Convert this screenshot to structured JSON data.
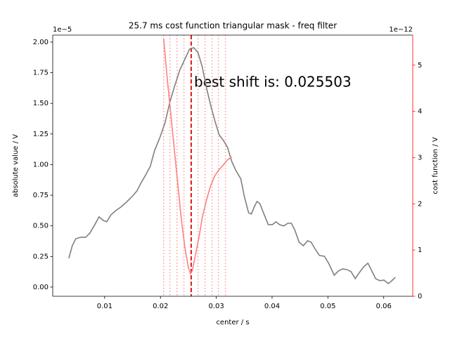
{
  "chart_data": {
    "type": "line",
    "title": "25.7 ms cost function triangular mask - freq filter",
    "xlabel": "center / s",
    "ylabel": "absolute value / V",
    "y2label": "cost function / V",
    "y_offset_label": "1e−5",
    "y2_offset_label": "1e−12",
    "annotation": "best shift is: 0.025503",
    "annotation_color": "#ff0000",
    "xlim": [
      0.0007,
      0.0652
    ],
    "xticks": [
      0.01,
      0.02,
      0.03,
      0.04,
      0.05,
      0.06
    ],
    "ylim": [
      -0.075,
      2.057
    ],
    "yticks": [
      {
        "value": 0,
        "label": "0.00"
      },
      {
        "value": 0.25,
        "label": "0.25"
      },
      {
        "value": 0.5,
        "label": "0.50"
      },
      {
        "value": 0.75,
        "label": "0.75"
      },
      {
        "value": 1,
        "label": "1.00"
      },
      {
        "value": 1.25,
        "label": "1.25"
      },
      {
        "value": 1.5,
        "label": "1.50"
      },
      {
        "value": 1.75,
        "label": "1.75"
      },
      {
        "value": 2,
        "label": "2.00"
      }
    ],
    "y2lim": [
      0,
      5.65
    ],
    "y2ticks": [
      0,
      1,
      2,
      3,
      4,
      5
    ],
    "y2_color": "#ff0000",
    "best_shift": 0.025503,
    "best_shift_color": "#dd0000",
    "window_edges": [
      0.02057,
      0.0217,
      0.02296,
      0.02421,
      0.02673,
      0.02799,
      0.02925,
      0.03038,
      0.03164
    ],
    "window_color": "#ff9999",
    "series": [
      {
        "color": "#808080",
        "x": [
          0.00358,
          0.00421,
          0.00484,
          0.00572,
          0.0066,
          0.00736,
          0.00824,
          0.00899,
          0.00975,
          0.01038,
          0.01113,
          0.01201,
          0.01289,
          0.0139,
          0.01491,
          0.01579,
          0.01642,
          0.0173,
          0.01818,
          0.01893,
          0.01994,
          0.02082,
          0.0217,
          0.02245,
          0.02346,
          0.02434,
          0.02522,
          0.02597,
          0.02673,
          0.02748,
          0.02824,
          0.02899,
          0.02975,
          0.0305,
          0.03126,
          0.03201,
          0.03277,
          0.03352,
          0.0344,
          0.03503,
          0.03579,
          0.03629,
          0.03679,
          0.0373,
          0.0378,
          0.03855,
          0.03931,
          0.04006,
          0.04069,
          0.04132,
          0.04208,
          0.04283,
          0.04346,
          0.04409,
          0.04484,
          0.0456,
          0.04635,
          0.04698,
          0.04774,
          0.04849,
          0.04937,
          0.05013,
          0.05113,
          0.05189,
          0.05264,
          0.0534,
          0.05415,
          0.05491,
          0.05566,
          0.05642,
          0.05717,
          0.0578,
          0.05855,
          0.05931,
          0.06006,
          0.06082,
          0.06145,
          0.06208
        ],
        "values": [
          0.235,
          0.338,
          0.395,
          0.407,
          0.407,
          0.441,
          0.51,
          0.573,
          0.544,
          0.533,
          0.59,
          0.625,
          0.653,
          0.693,
          0.739,
          0.785,
          0.842,
          0.911,
          0.986,
          1.112,
          1.226,
          1.341,
          1.513,
          1.628,
          1.771,
          1.857,
          1.943,
          1.954,
          1.914,
          1.799,
          1.628,
          1.484,
          1.358,
          1.244,
          1.198,
          1.141,
          1.026,
          0.951,
          0.883,
          0.739,
          0.607,
          0.596,
          0.653,
          0.699,
          0.682,
          0.596,
          0.51,
          0.51,
          0.533,
          0.51,
          0.499,
          0.521,
          0.521,
          0.464,
          0.367,
          0.338,
          0.378,
          0.367,
          0.309,
          0.258,
          0.252,
          0.195,
          0.097,
          0.132,
          0.149,
          0.143,
          0.126,
          0.069,
          0.12,
          0.166,
          0.195,
          0.138,
          0.069,
          0.052,
          0.057,
          0.029,
          0.052,
          0.08
        ]
      },
      {
        "color": "#ff7f7f",
        "axis": "y2",
        "x": [
          0.02057,
          0.02119,
          0.02182,
          0.02245,
          0.02308,
          0.02371,
          0.02434,
          0.02497,
          0.02535,
          0.02572,
          0.02623,
          0.02686,
          0.02748,
          0.02824,
          0.02899,
          0.02975,
          0.0305,
          0.03126,
          0.03201,
          0.03277
        ],
        "values": [
          5.58,
          4.74,
          3.98,
          3.22,
          2.46,
          1.7,
          1.09,
          0.64,
          0.49,
          0.56,
          0.87,
          1.25,
          1.7,
          2.08,
          2.39,
          2.61,
          2.74,
          2.84,
          2.95,
          3.01
        ]
      }
    ]
  }
}
